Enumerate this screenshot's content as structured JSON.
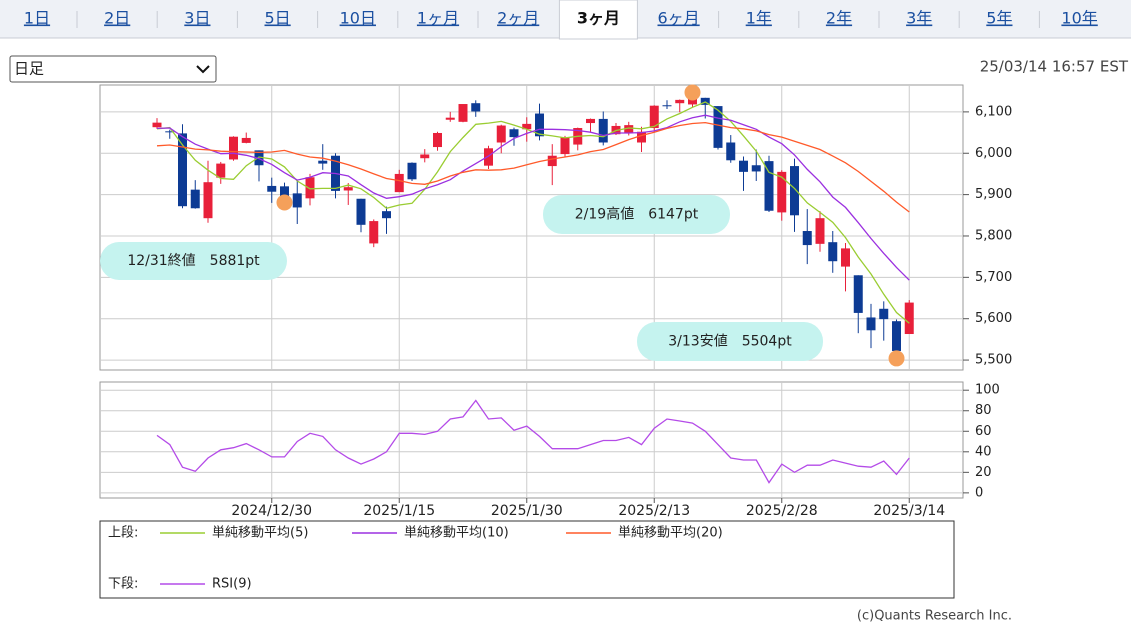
{
  "tabs": [
    {
      "label": "1日",
      "selected": false
    },
    {
      "label": "2日",
      "selected": false
    },
    {
      "label": "3日",
      "selected": false
    },
    {
      "label": "5日",
      "selected": false
    },
    {
      "label": "10日",
      "selected": false
    },
    {
      "label": "1ヶ月",
      "selected": false
    },
    {
      "label": "2ヶ月",
      "selected": false
    },
    {
      "label": "3ヶ月",
      "selected": true
    },
    {
      "label": "6ヶ月",
      "selected": false
    },
    {
      "label": "1年",
      "selected": false
    },
    {
      "label": "2年",
      "selected": false
    },
    {
      "label": "3年",
      "selected": false
    },
    {
      "label": "5年",
      "selected": false
    },
    {
      "label": "10年",
      "selected": false
    }
  ],
  "select": "日足",
  "timestamp": "25/03/14 16:57 EST",
  "copyright": "(c)Quants Research Inc.",
  "chart_data": [
    {
      "type": "candlestick",
      "up_color": "#e8203a",
      "down_color": "#0d3b94",
      "grid": true,
      "ylim": [
        5476,
        6165
      ],
      "yticks": [
        {
          "value": 5500,
          "label": "5,500"
        },
        {
          "value": 5600,
          "label": "5,600"
        },
        {
          "value": 5700,
          "label": "5,700"
        },
        {
          "value": 5800,
          "label": "5,800"
        },
        {
          "value": 5900,
          "label": "5,900"
        },
        {
          "value": 6000,
          "label": "6,000"
        },
        {
          "value": 6100,
          "label": "6,100"
        }
      ],
      "open": [
        6063,
        6053,
        6048,
        5912,
        5843,
        5941,
        5985,
        6025,
        6007,
        5921,
        5920,
        5903,
        5891,
        5982,
        5994,
        5910,
        5890,
        5782,
        5860,
        5906,
        5977,
        5988,
        6015,
        6081,
        6076,
        6121,
        5970,
        6026,
        6058,
        6058,
        6096,
        5969,
        5998,
        6021,
        6073,
        6083,
        6046,
        6050,
        6026,
        6061,
        6116,
        6121,
        6118,
        6134,
        6114,
        6026,
        5982,
        5971,
        5981,
        5857,
        5969,
        5812,
        5781,
        5785,
        5726,
        5705,
        5603,
        5624,
        5594,
        5563
      ],
      "high": [
        6085,
        6057,
        6070,
        5935,
        5982,
        5979,
        6041,
        6050,
        6007,
        5941,
        5929,
        5935,
        5950,
        6022,
        6000,
        5928,
        5890,
        5840,
        5871,
        5960,
        5978,
        6010,
        6052,
        6100,
        6118,
        6128,
        6018,
        6069,
        6062,
        6087,
        6120,
        6022,
        6042,
        6062,
        6084,
        6101,
        6073,
        6076,
        6064,
        6116,
        6128,
        6130,
        6147,
        6134,
        6114,
        6044,
        5992,
        6009,
        5994,
        5959,
        5987,
        5865,
        5860,
        5812,
        5783,
        5705,
        5636,
        5642,
        5598,
        5645
      ],
      "low": [
        6059,
        6035,
        5867,
        5866,
        5832,
        5926,
        5982,
        6024,
        5932,
        5880,
        5869,
        5829,
        5874,
        5960,
        5891,
        5875,
        5809,
        5773,
        5805,
        5906,
        5933,
        5978,
        6006,
        6076,
        6075,
        6088,
        5962,
        6000,
        6018,
        6028,
        6031,
        5923,
        5990,
        6007,
        6052,
        6019,
        6044,
        6043,
        6003,
        6051,
        6107,
        6099,
        6111,
        6084,
        6009,
        5977,
        5909,
        5933,
        5858,
        5837,
        5810,
        5732,
        5762,
        5711,
        5666,
        5565,
        5529,
        5547,
        5504,
        5563
      ],
      "close": [
        6074,
        6051,
        5872,
        5867,
        5930,
        5975,
        6040,
        6037,
        5971,
        5907,
        5881,
        5869,
        5942,
        5975,
        5909,
        5918,
        5827,
        5836,
        5843,
        5950,
        5937,
        5997,
        6049,
        6086,
        6119,
        6101,
        6012,
        6067,
        6039,
        6071,
        6041,
        5994,
        6038,
        6061,
        6083,
        6026,
        6066,
        6068,
        6052,
        6115,
        6115,
        6129,
        6144,
        6117,
        6013,
        5983,
        5955,
        5956,
        5861,
        5955,
        5850,
        5778,
        5843,
        5739,
        5770,
        5614,
        5572,
        5599,
        5522,
        5639
      ],
      "legend_title": "上段:",
      "series": [
        {
          "name": "単純移動平均(5)",
          "color": "#9acd32",
          "values": [
            6059,
            6062,
            6020,
            5983,
            5959,
            5939,
            5937,
            5970,
            5991,
            5986,
            5967,
            5933,
            5914,
            5915,
            5915,
            5923,
            5914,
            5893,
            5867,
            5875,
            5879,
            5913,
            5955,
            6004,
            6038,
            6070,
            6073,
            6077,
            6068,
            6058,
            6046,
            6042,
            6037,
            6041,
            6043,
            6040,
            6055,
            6061,
            6059,
            6065,
            6083,
            6096,
            6111,
            6124,
            6104,
            6077,
            6042,
            6005,
            5954,
            5942,
            5915,
            5880,
            5857,
            5833,
            5796,
            5749,
            5708,
            5659,
            5615,
            5589
          ]
        },
        {
          "name": "単純移動平均(10)",
          "color": "#9b30e0",
          "values": [
            6060,
            6061,
            6040,
            6022,
            6010,
            5999,
            6000,
            5995,
            5987,
            5973,
            5953,
            5935,
            5942,
            5953,
            5951,
            5945,
            5924,
            5904,
            5891,
            5895,
            5901,
            5914,
            5924,
            5936,
            5957,
            5975,
            5993,
            6016,
            6036,
            6048,
            6058,
            6058,
            6057,
            6055,
            6051,
            6043,
            6049,
            6049,
            6050,
            6054,
            6062,
            6076,
            6086,
            6092,
            6085,
            6080,
            6069,
            6058,
            6039,
            6023,
            5996,
            5961,
            5931,
            5894,
            5869,
            5832,
            5794,
            5758,
            5724,
            5693
          ]
        },
        {
          "name": "単純移動平均(20)",
          "color": "#ff5a2a",
          "values": [
            6018,
            6020,
            6015,
            6010,
            6008,
            6005,
            6004,
            6003,
            6002,
            6003,
            6007,
            5998,
            5991,
            5988,
            5981,
            5972,
            5962,
            5950,
            5939,
            5934,
            5927,
            5925,
            5933,
            5945,
            5954,
            5960,
            5959,
            5960,
            5964,
            5972,
            5980,
            5986,
            5991,
            5996,
            6004,
            6009,
            6021,
            6033,
            6043,
            6051,
            6060,
            6067,
            6072,
            6074,
            6068,
            6062,
            6059,
            6054,
            6045,
            6039,
            6029,
            6019,
            6009,
            5993,
            5977,
            5956,
            5932,
            5908,
            5882,
            5858
          ]
        }
      ],
      "annotations": [
        {
          "text": "12/31終値　5881pt",
          "value": 5881
        },
        {
          "text": "2/19高値　6147pt",
          "value": 6147
        },
        {
          "text": "3/13安値　5504pt",
          "value": 5504
        }
      ]
    },
    {
      "type": "line",
      "grid": true,
      "ylim": [
        -5,
        108
      ],
      "yticks": [
        0,
        20,
        40,
        60,
        80,
        100
      ],
      "categories": [
        null,
        null,
        null,
        null,
        null,
        null,
        null,
        null,
        null,
        "2024/12/30",
        null,
        null,
        null,
        null,
        null,
        null,
        null,
        null,
        null,
        "2025/1/15",
        null,
        null,
        null,
        null,
        null,
        null,
        null,
        null,
        null,
        "2025/1/30",
        null,
        null,
        null,
        null,
        null,
        null,
        null,
        null,
        null,
        "2025/2/13",
        null,
        null,
        null,
        null,
        null,
        null,
        null,
        null,
        null,
        "2025/2/28",
        null,
        null,
        null,
        null,
        null,
        null,
        null,
        null,
        null,
        "2025/3/14"
      ],
      "legend_title": "下段:",
      "series": [
        {
          "name": "RSI(9)",
          "color": "#b44be8",
          "values": [
            56,
            47,
            25,
            21,
            34,
            42,
            44,
            48,
            42,
            35,
            35,
            50,
            58,
            55,
            42,
            34,
            28,
            33,
            40,
            58,
            58,
            57,
            60,
            72,
            74,
            90,
            72,
            73,
            61,
            65,
            55,
            43,
            43,
            43,
            47,
            51,
            51,
            54,
            47,
            63,
            72,
            70,
            68,
            60,
            47,
            34,
            32,
            32,
            10,
            28,
            20,
            27,
            27,
            32,
            29,
            26,
            25,
            31,
            18,
            34
          ]
        }
      ]
    }
  ]
}
